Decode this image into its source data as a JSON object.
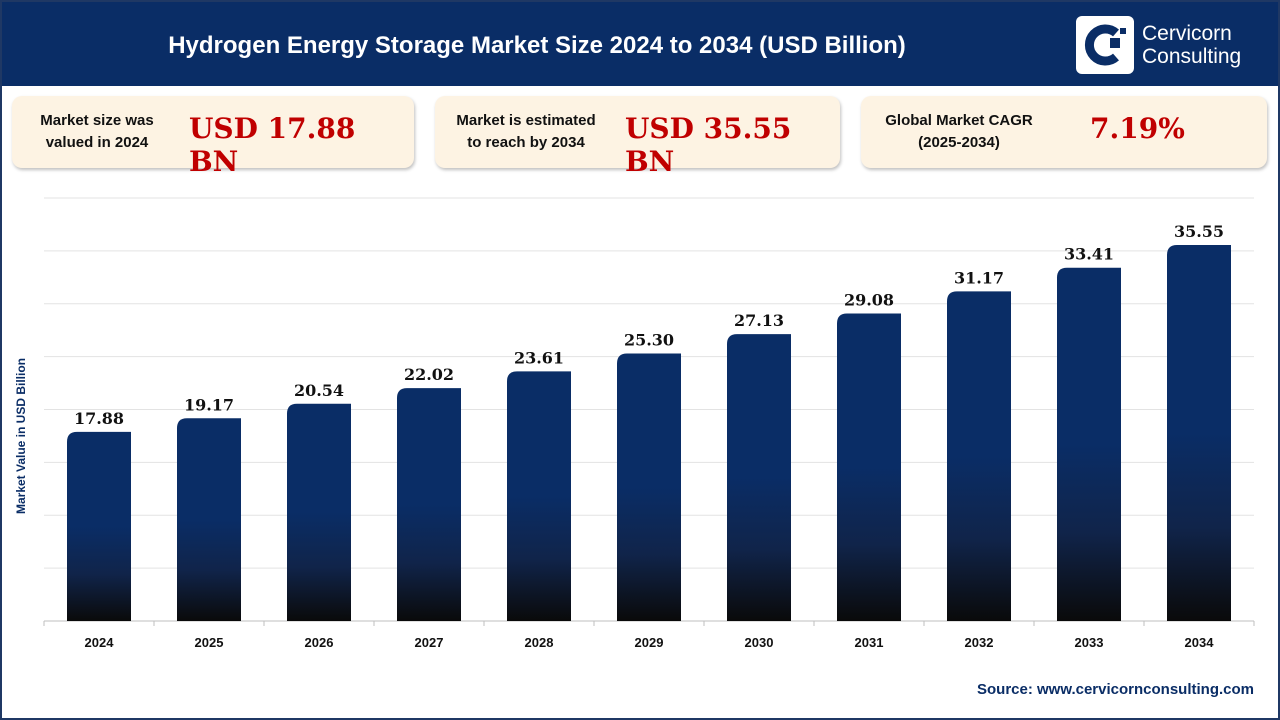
{
  "header": {
    "title": "Hydrogen Energy Storage Market Size 2024 to 2034 (USD Billion)",
    "logo": {
      "line1": "Cervicorn",
      "line2": "Consulting"
    }
  },
  "kpis": [
    {
      "label_line1": "Market size was",
      "label_line2": "valued in 2024",
      "value": "USD 17.88 BN"
    },
    {
      "label_line1": "Market is estimated",
      "label_line2": "to reach by 2034",
      "value": "USD 35.55 BN"
    },
    {
      "label_line1": "Global Market CAGR",
      "label_line2": "(2025-2034)",
      "value": "7.19%"
    }
  ],
  "source": "Source: www.cervicornconsulting.com",
  "colors": {
    "header": "#0a2d66",
    "accent": "#c00000",
    "bar_top": "#0a2d66",
    "bar_bottom": "#0a0a0a",
    "kpi_bg": "#fdf3e3"
  },
  "chart_data": {
    "type": "bar",
    "title": "Hydrogen Energy Storage Market Size 2024 to 2034 (USD Billion)",
    "xlabel": "",
    "ylabel": "Market Value in USD Billion",
    "categories": [
      "2024",
      "2025",
      "2026",
      "2027",
      "2028",
      "2029",
      "2030",
      "2031",
      "2032",
      "2033",
      "2034"
    ],
    "values": [
      17.88,
      19.17,
      20.54,
      22.02,
      23.61,
      25.3,
      27.13,
      29.08,
      31.17,
      33.41,
      35.55
    ],
    "value_labels": [
      "17.88",
      "19.17",
      "20.54",
      "22.02",
      "23.61",
      "25.30",
      "27.13",
      "29.08",
      "31.17",
      "33.41",
      "35.55"
    ],
    "ylim": [
      0,
      40
    ],
    "grid": true,
    "legend": "none"
  }
}
